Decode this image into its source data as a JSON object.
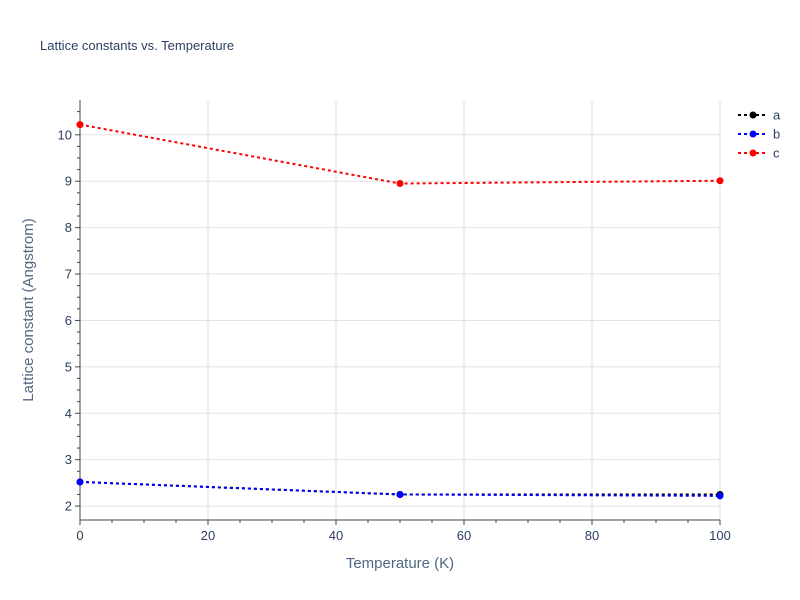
{
  "chart_data": {
    "type": "line",
    "title": "Lattice constants vs. Temperature",
    "xlabel": "Temperature (K)",
    "ylabel": "Lattice constant (Angstrom)",
    "x": [
      0,
      50,
      100
    ],
    "xlim": [
      0,
      100
    ],
    "ylim": [
      1.7,
      10.75
    ],
    "x_ticks": [
      0,
      20,
      40,
      60,
      80,
      100
    ],
    "y_ticks": [
      2,
      3,
      4,
      5,
      6,
      7,
      8,
      9,
      10
    ],
    "grid": true,
    "legend_position": "top-right",
    "series": [
      {
        "name": "a",
        "color": "#000000",
        "values": [
          2.52,
          2.25,
          2.25
        ]
      },
      {
        "name": "b",
        "color": "#0000ff",
        "values": [
          2.52,
          2.25,
          2.22
        ]
      },
      {
        "name": "c",
        "color": "#ff0000",
        "values": [
          10.22,
          8.95,
          9.01
        ]
      }
    ]
  }
}
